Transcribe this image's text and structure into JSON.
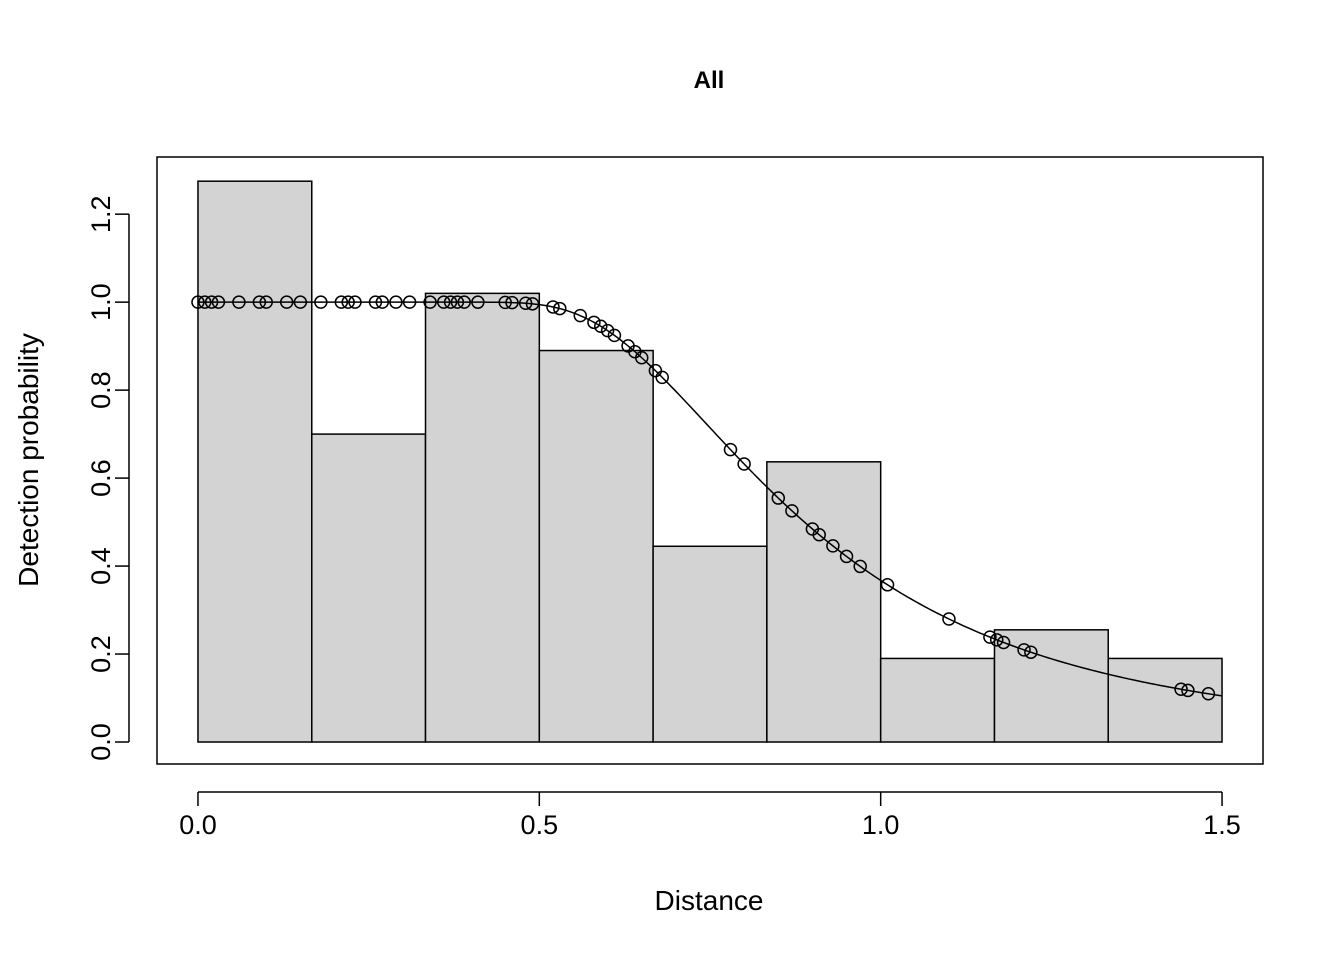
{
  "chart_data": {
    "type": "bar",
    "title": "All",
    "xlabel": "Distance",
    "ylabel": "Detection probability",
    "xlim": [
      -0.06,
      1.56
    ],
    "ylim": [
      -0.05,
      1.33
    ],
    "xticks": [
      {
        "value": 0.0,
        "label": "0.0"
      },
      {
        "value": 0.5,
        "label": "0.5"
      },
      {
        "value": 1.0,
        "label": "1.0"
      },
      {
        "value": 1.5,
        "label": "1.5"
      }
    ],
    "yticks": [
      {
        "value": 0.0,
        "label": "0.0"
      },
      {
        "value": 0.2,
        "label": "0.2"
      },
      {
        "value": 0.4,
        "label": "0.4"
      },
      {
        "value": 0.6,
        "label": "0.6"
      },
      {
        "value": 0.8,
        "label": "0.8"
      },
      {
        "value": 1.0,
        "label": "1.0"
      },
      {
        "value": 1.2,
        "label": "1.2"
      }
    ],
    "histogram": {
      "bin_edges": [
        0.0,
        0.1667,
        0.3333,
        0.5,
        0.6667,
        0.8333,
        1.0,
        1.1667,
        1.3333,
        1.5
      ],
      "values": [
        1.275,
        0.7,
        1.02,
        0.89,
        0.445,
        0.637,
        0.19,
        0.255,
        0.19
      ],
      "fill": "#d3d3d3",
      "stroke": "#000000"
    },
    "fitted_curve": {
      "scale": 0.8,
      "key": "hazard-rate",
      "shape": 3.5,
      "x_range": [
        0.0,
        1.5
      ]
    },
    "points": {
      "x": [
        0.0,
        0.01,
        0.02,
        0.03,
        0.06,
        0.09,
        0.1,
        0.13,
        0.15,
        0.18,
        0.21,
        0.22,
        0.23,
        0.26,
        0.27,
        0.29,
        0.31,
        0.34,
        0.36,
        0.37,
        0.38,
        0.39,
        0.41,
        0.45,
        0.46,
        0.48,
        0.49,
        0.52,
        0.53,
        0.56,
        0.58,
        0.59,
        0.6,
        0.61,
        0.63,
        0.64,
        0.65,
        0.67,
        0.68,
        0.78,
        0.8,
        0.85,
        0.87,
        0.9,
        0.91,
        0.93,
        0.95,
        0.97,
        1.01,
        1.1,
        1.16,
        1.17,
        1.18,
        1.21,
        1.22,
        1.44,
        1.45,
        1.48
      ]
    },
    "grid": false,
    "legend": "none"
  }
}
